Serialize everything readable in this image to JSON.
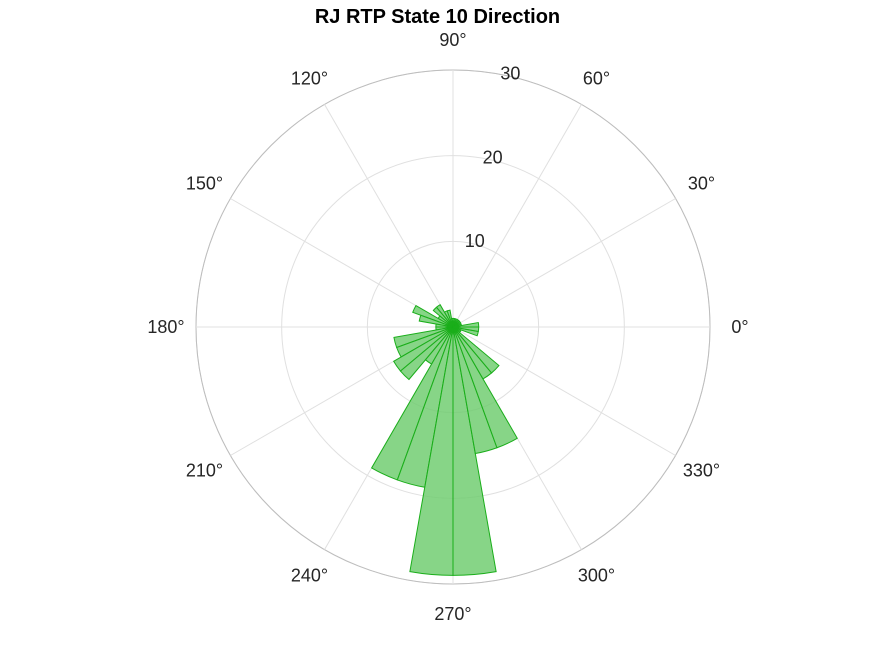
{
  "chart_data": {
    "type": "polar-histogram",
    "title": "RJ  RTP State 10 Direction",
    "angle_ticks": [
      {
        "deg": 0,
        "label": "0°"
      },
      {
        "deg": 30,
        "label": "30°"
      },
      {
        "deg": 60,
        "label": "60°"
      },
      {
        "deg": 90,
        "label": "90°"
      },
      {
        "deg": 120,
        "label": "120°"
      },
      {
        "deg": 150,
        "label": "150°"
      },
      {
        "deg": 180,
        "label": "180°"
      },
      {
        "deg": 210,
        "label": "210°"
      },
      {
        "deg": 240,
        "label": "240°"
      },
      {
        "deg": 270,
        "label": "270°"
      },
      {
        "deg": 300,
        "label": "300°"
      },
      {
        "deg": 330,
        "label": "330°"
      }
    ],
    "r_ticks": [
      {
        "value": 10,
        "label": "10"
      },
      {
        "value": 20,
        "label": "20"
      },
      {
        "value": 30,
        "label": "30"
      }
    ],
    "r_max": 30,
    "bin_width_deg": 10,
    "bins": [
      {
        "start": 0,
        "end": 10,
        "count": 3
      },
      {
        "start": 10,
        "end": 20,
        "count": 1
      },
      {
        "start": 20,
        "end": 30,
        "count": 1
      },
      {
        "start": 30,
        "end": 40,
        "count": 1
      },
      {
        "start": 40,
        "end": 50,
        "count": 1
      },
      {
        "start": 50,
        "end": 60,
        "count": 1
      },
      {
        "start": 60,
        "end": 70,
        "count": 1
      },
      {
        "start": 70,
        "end": 80,
        "count": 1
      },
      {
        "start": 80,
        "end": 90,
        "count": 1
      },
      {
        "start": 90,
        "end": 100,
        "count": 1
      },
      {
        "start": 100,
        "end": 110,
        "count": 2
      },
      {
        "start": 110,
        "end": 120,
        "count": 2
      },
      {
        "start": 120,
        "end": 130,
        "count": 3
      },
      {
        "start": 130,
        "end": 140,
        "count": 3
      },
      {
        "start": 140,
        "end": 150,
        "count": 2
      },
      {
        "start": 150,
        "end": 160,
        "count": 5
      },
      {
        "start": 160,
        "end": 170,
        "count": 4
      },
      {
        "start": 170,
        "end": 180,
        "count": 2
      },
      {
        "start": 180,
        "end": 190,
        "count": 2
      },
      {
        "start": 190,
        "end": 200,
        "count": 7
      },
      {
        "start": 200,
        "end": 210,
        "count": 7
      },
      {
        "start": 210,
        "end": 220,
        "count": 8
      },
      {
        "start": 220,
        "end": 230,
        "count": 8
      },
      {
        "start": 230,
        "end": 240,
        "count": 5
      },
      {
        "start": 240,
        "end": 250,
        "count": 19
      },
      {
        "start": 250,
        "end": 260,
        "count": 19
      },
      {
        "start": 260,
        "end": 270,
        "count": 29
      },
      {
        "start": 270,
        "end": 280,
        "count": 29
      },
      {
        "start": 280,
        "end": 290,
        "count": 15
      },
      {
        "start": 290,
        "end": 300,
        "count": 15
      },
      {
        "start": 300,
        "end": 310,
        "count": 7
      },
      {
        "start": 310,
        "end": 320,
        "count": 7
      },
      {
        "start": 320,
        "end": 330,
        "count": 1
      },
      {
        "start": 330,
        "end": 340,
        "count": 1
      },
      {
        "start": 340,
        "end": 350,
        "count": 3
      },
      {
        "start": 350,
        "end": 360,
        "count": 3
      }
    ],
    "colors": {
      "bar_fill": "#6dcc6d",
      "bar_edge": "#1aae1a",
      "grid": "#e0e0e0",
      "outer": "#bdbdbd"
    },
    "grid": true,
    "legend": "none"
  }
}
